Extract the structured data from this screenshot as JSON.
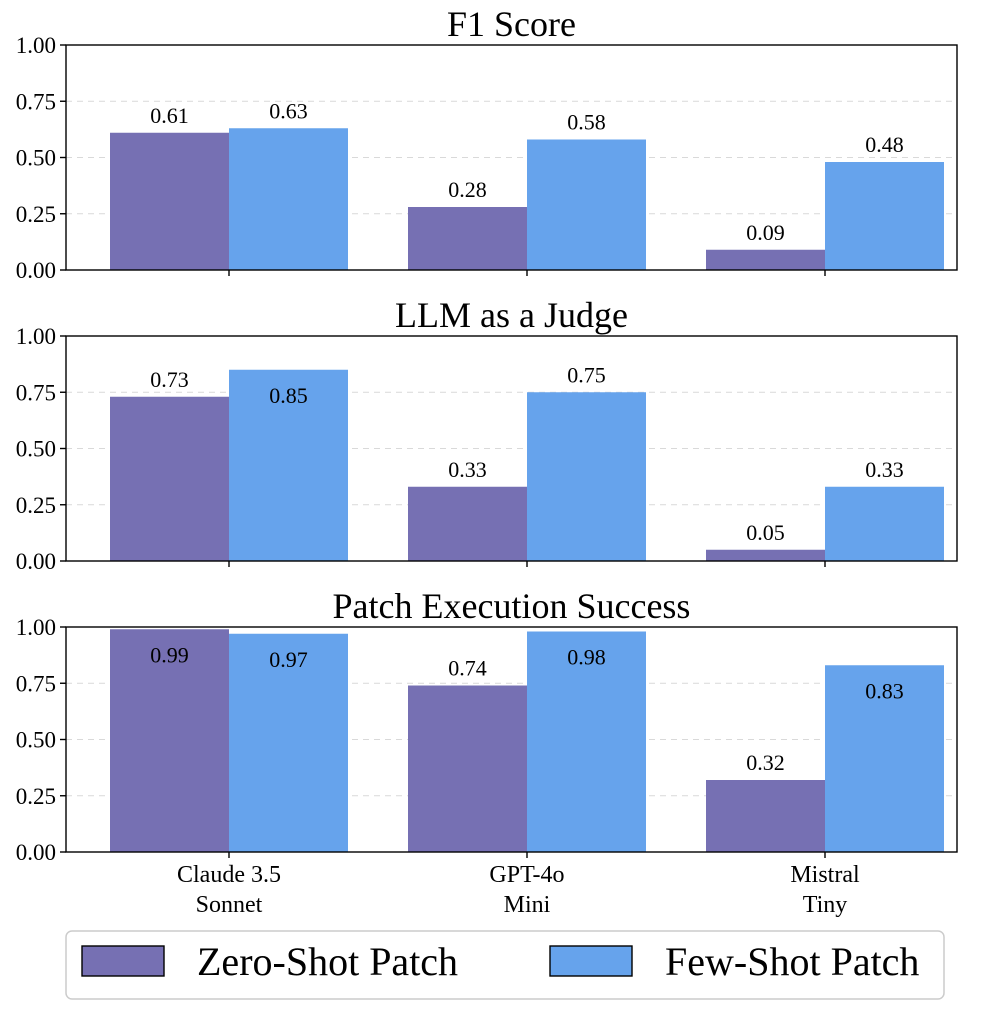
{
  "chart_data": {
    "type": "bar",
    "categories": [
      [
        "Claude 3.5",
        "Sonnet"
      ],
      [
        "GPT-4o",
        "Mini"
      ],
      [
        "Mistral",
        "Tiny"
      ]
    ],
    "legend": {
      "placement": "bottom",
      "entries": [
        "Zero-Shot Patch",
        "Few-Shot Patch"
      ]
    },
    "colors": [
      "#7670B3",
      "#66A3EC"
    ],
    "yticks": [
      "0.00",
      "0.25",
      "0.50",
      "0.75",
      "1.00"
    ],
    "ylim": [
      0,
      1
    ],
    "grid": true,
    "panels": [
      {
        "title": "F1 Score",
        "series": [
          {
            "name": "Zero-Shot Patch",
            "values": [
              0.61,
              0.28,
              0.09
            ]
          },
          {
            "name": "Few-Shot Patch",
            "values": [
              0.63,
              0.58,
              0.48
            ]
          }
        ]
      },
      {
        "title": "LLM as a Judge",
        "series": [
          {
            "name": "Zero-Shot Patch",
            "values": [
              0.73,
              0.33,
              0.05
            ]
          },
          {
            "name": "Few-Shot Patch",
            "values": [
              0.85,
              0.75,
              0.33
            ]
          }
        ]
      },
      {
        "title": "Patch Execution Success",
        "series": [
          {
            "name": "Zero-Shot Patch",
            "values": [
              0.99,
              0.74,
              0.32
            ]
          },
          {
            "name": "Few-Shot Patch",
            "values": [
              0.97,
              0.98,
              0.83
            ]
          }
        ]
      }
    ]
  }
}
